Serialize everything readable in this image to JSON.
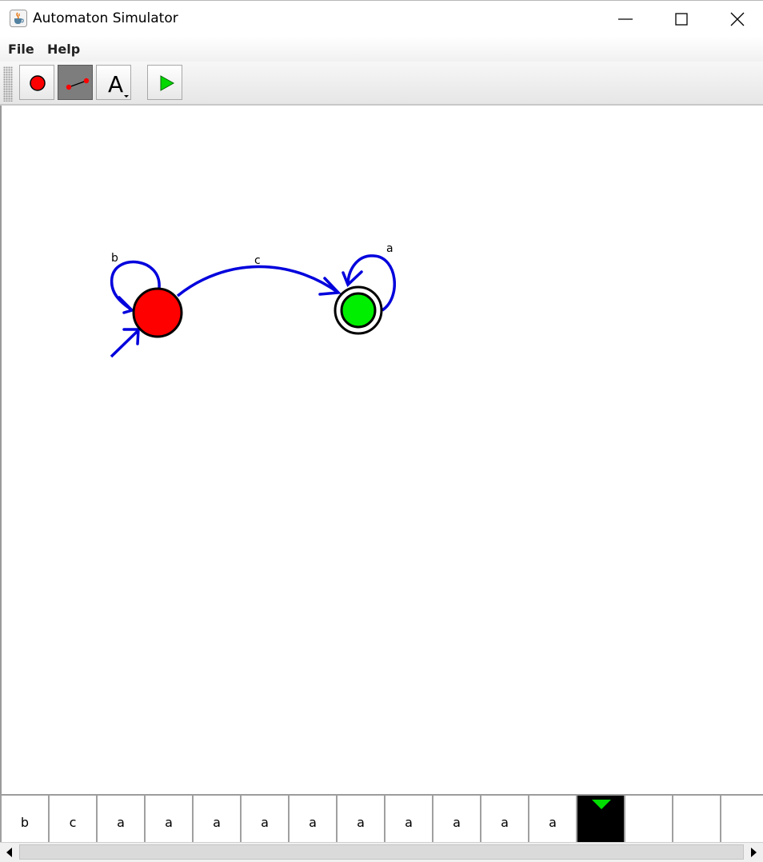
{
  "window": {
    "title": "Automaton Simulator",
    "icon": "java-cup-icon",
    "controls": [
      "minimize-icon",
      "maximize-icon",
      "close-icon"
    ]
  },
  "menu": {
    "items": [
      {
        "label": "File"
      },
      {
        "label": "Help"
      }
    ]
  },
  "toolbar": {
    "tools": [
      {
        "name": "add-state-tool",
        "icon": "red-circle-icon",
        "active": false
      },
      {
        "name": "add-transition-tool",
        "icon": "transition-line-icon",
        "active": true
      },
      {
        "name": "text-tool",
        "icon": "letter-a-icon",
        "glyph": "A",
        "active": false
      },
      {
        "name": "run-tool",
        "icon": "play-icon",
        "active": false
      }
    ]
  },
  "automaton": {
    "states": [
      {
        "id": "q0",
        "initial": true,
        "accepting": false,
        "fill": "#ff0000"
      },
      {
        "id": "q1",
        "initial": false,
        "accepting": true,
        "fill": "#00ee00"
      }
    ],
    "transitions": [
      {
        "from": "q0",
        "to": "q0",
        "label": "b"
      },
      {
        "from": "q0",
        "to": "q1",
        "label": "c"
      },
      {
        "from": "q1",
        "to": "q1",
        "label": "a"
      }
    ],
    "edge_color": "#0000dd"
  },
  "tape": {
    "cells": [
      "b",
      "c",
      "a",
      "a",
      "a",
      "a",
      "a",
      "a",
      "a",
      "a",
      "a",
      "a",
      "",
      "",
      "",
      ""
    ],
    "head_index": 12,
    "head_color": "#00dd00"
  }
}
